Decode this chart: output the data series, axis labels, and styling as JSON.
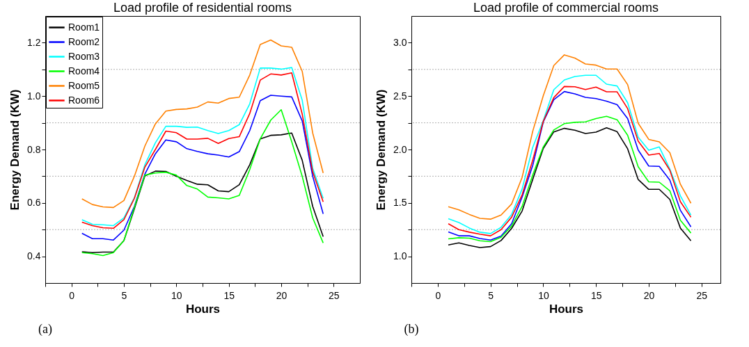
{
  "chart_data": [
    {
      "type": "line",
      "title": "Load profile of residential rooms",
      "xlabel": "Hours",
      "ylabel": "Energy Demand (KW)",
      "annotations": [
        "(a)"
      ],
      "x": [
        1,
        2,
        3,
        4,
        5,
        6,
        7,
        8,
        9,
        10,
        11,
        12,
        13,
        14,
        15,
        16,
        17,
        18,
        19,
        20,
        21,
        22,
        23,
        24
      ],
      "series": [
        {
          "name": "Room1",
          "color": "#000000",
          "values": [
            0.417,
            0.414,
            0.416,
            0.416,
            0.459,
            0.578,
            0.701,
            0.719,
            0.718,
            0.7,
            0.684,
            0.67,
            0.668,
            0.645,
            0.642,
            0.668,
            0.743,
            0.84,
            0.853,
            0.855,
            0.862,
            0.76,
            0.587,
            0.474
          ]
        },
        {
          "name": "Room2",
          "color": "#0000ff",
          "values": [
            0.486,
            0.466,
            0.466,
            0.461,
            0.498,
            0.587,
            0.708,
            0.784,
            0.836,
            0.829,
            0.803,
            0.793,
            0.784,
            0.779,
            0.772,
            0.792,
            0.871,
            0.983,
            1.003,
            1.0,
            0.997,
            0.907,
            0.7,
            0.559
          ]
        },
        {
          "name": "Room3",
          "color": "#00ffff",
          "values": [
            0.537,
            0.52,
            0.518,
            0.515,
            0.544,
            0.62,
            0.743,
            0.825,
            0.887,
            0.887,
            0.883,
            0.884,
            0.871,
            0.86,
            0.871,
            0.893,
            0.971,
            1.105,
            1.105,
            1.101,
            1.107,
            0.985,
            0.73,
            0.617
          ]
        },
        {
          "name": "Room4",
          "color": "#00ff00",
          "values": [
            0.414,
            0.41,
            0.403,
            0.414,
            0.459,
            0.583,
            0.704,
            0.712,
            0.715,
            0.704,
            0.665,
            0.652,
            0.622,
            0.619,
            0.615,
            0.628,
            0.725,
            0.84,
            0.91,
            0.949,
            0.829,
            0.7,
            0.544,
            0.45
          ]
        },
        {
          "name": "Room5",
          "color": "#ff8000",
          "values": [
            0.615,
            0.594,
            0.585,
            0.583,
            0.609,
            0.7,
            0.813,
            0.896,
            0.944,
            0.95,
            0.952,
            0.959,
            0.978,
            0.974,
            0.991,
            0.996,
            1.079,
            1.193,
            1.21,
            1.188,
            1.183,
            1.093,
            0.862,
            0.712
          ]
        },
        {
          "name": "Room6",
          "color": "#ff0000",
          "values": [
            0.528,
            0.515,
            0.507,
            0.505,
            0.537,
            0.617,
            0.734,
            0.8,
            0.869,
            0.863,
            0.839,
            0.839,
            0.842,
            0.823,
            0.841,
            0.848,
            0.935,
            1.06,
            1.083,
            1.079,
            1.087,
            0.933,
            0.717,
            0.604
          ]
        }
      ],
      "xlim": [
        -2.5,
        27.5
      ],
      "xticks": [
        {
          "value": -2.5,
          "label": null
        },
        0,
        {
          "value": 2.5,
          "label": null
        },
        5,
        {
          "value": 7.5,
          "label": null
        },
        10,
        {
          "value": 12.5,
          "label": null
        },
        15,
        {
          "value": 17.5,
          "label": null
        },
        20,
        {
          "value": 22.5,
          "label": null
        },
        25
      ],
      "ylim": [
        0.3,
        1.3
      ],
      "yticks": [
        0.4,
        {
          "value": 0.5,
          "label": null
        },
        0.6,
        {
          "value": 0.7,
          "label": null
        },
        0.8,
        {
          "value": 0.9,
          "label": null
        },
        {
          "value": 1.0,
          "label": "1.0"
        },
        {
          "value": 1.1,
          "label": null
        },
        1.2
      ],
      "grid": "y",
      "legend": "top left",
      "marker": "none",
      "line_style": "solid"
    },
    {
      "type": "line",
      "title": "Load profile of commercial rooms",
      "xlabel": "Hours",
      "ylabel": "Energy Demand (KW)",
      "annotations": [
        "(b)"
      ],
      "x": [
        1,
        2,
        3,
        4,
        5,
        6,
        7,
        8,
        9,
        10,
        11,
        12,
        13,
        14,
        15,
        16,
        17,
        18,
        19,
        20,
        21,
        22,
        23,
        24
      ],
      "series": [
        {
          "name": "Room1",
          "color": "#000000",
          "values": [
            1.107,
            1.126,
            1.102,
            1.082,
            1.091,
            1.148,
            1.261,
            1.425,
            1.719,
            2.01,
            2.165,
            2.198,
            2.181,
            2.15,
            2.163,
            2.203,
            2.167,
            2.007,
            1.719,
            1.627,
            1.627,
            1.533,
            1.265,
            1.146
          ]
        },
        {
          "name": "Room2",
          "color": "#0000ff",
          "values": [
            1.229,
            1.192,
            1.192,
            1.167,
            1.152,
            1.19,
            1.305,
            1.556,
            1.85,
            2.257,
            2.466,
            2.543,
            2.521,
            2.488,
            2.477,
            2.453,
            2.42,
            2.29,
            1.995,
            1.845,
            1.842,
            1.714,
            1.431,
            1.276
          ]
        },
        {
          "name": "Room3",
          "color": "#00ffff",
          "values": [
            1.353,
            1.316,
            1.265,
            1.226,
            1.213,
            1.272,
            1.392,
            1.631,
            2.02,
            2.27,
            2.56,
            2.651,
            2.684,
            2.695,
            2.695,
            2.612,
            2.595,
            2.438,
            2.115,
            1.993,
            2.024,
            1.817,
            1.566,
            1.386
          ]
        },
        {
          "name": "Room4",
          "color": "#00ff00",
          "values": [
            1.163,
            1.174,
            1.17,
            1.146,
            1.137,
            1.178,
            1.283,
            1.468,
            1.76,
            2.024,
            2.183,
            2.242,
            2.255,
            2.259,
            2.29,
            2.311,
            2.279,
            2.133,
            1.839,
            1.697,
            1.694,
            1.614,
            1.337,
            1.218
          ]
        },
        {
          "name": "Room5",
          "color": "#ff8000",
          "values": [
            1.464,
            1.435,
            1.392,
            1.355,
            1.348,
            1.386,
            1.49,
            1.74,
            2.17,
            2.503,
            2.786,
            2.886,
            2.856,
            2.801,
            2.79,
            2.754,
            2.754,
            2.608,
            2.246,
            2.095,
            2.072,
            1.971,
            1.675,
            1.497
          ]
        },
        {
          "name": "Room6",
          "color": "#ff0000",
          "values": [
            1.305,
            1.25,
            1.226,
            1.207,
            1.192,
            1.25,
            1.366,
            1.577,
            1.9,
            2.264,
            2.486,
            2.59,
            2.588,
            2.562,
            2.584,
            2.54,
            2.54,
            2.383,
            2.078,
            1.948,
            1.963,
            1.806,
            1.512,
            1.366
          ]
        }
      ],
      "xlim": [
        -2.5,
        26.8
      ],
      "xticks": [
        {
          "value": -2.5,
          "label": null
        },
        0,
        {
          "value": 2.5,
          "label": null
        },
        5,
        {
          "value": 7.5,
          "label": null
        },
        10,
        {
          "value": 12.5,
          "label": null
        },
        15,
        {
          "value": 17.5,
          "label": null
        },
        20,
        {
          "value": 22.5,
          "label": null
        },
        25
      ],
      "ylim": [
        0.75,
        3.25
      ],
      "yticks": [
        {
          "value": 1.0,
          "label": "1.0"
        },
        {
          "value": 1.25,
          "label": null
        },
        1.5,
        {
          "value": 1.75,
          "label": null
        },
        {
          "value": 2.0,
          "label": "2.0"
        },
        {
          "value": 2.25,
          "label": null
        },
        2.5,
        {
          "value": 2.75,
          "label": null
        },
        {
          "value": 3.0,
          "label": "3.0"
        }
      ],
      "grid": "y",
      "legend": "top left",
      "marker": "none",
      "line_style": "solid"
    }
  ]
}
